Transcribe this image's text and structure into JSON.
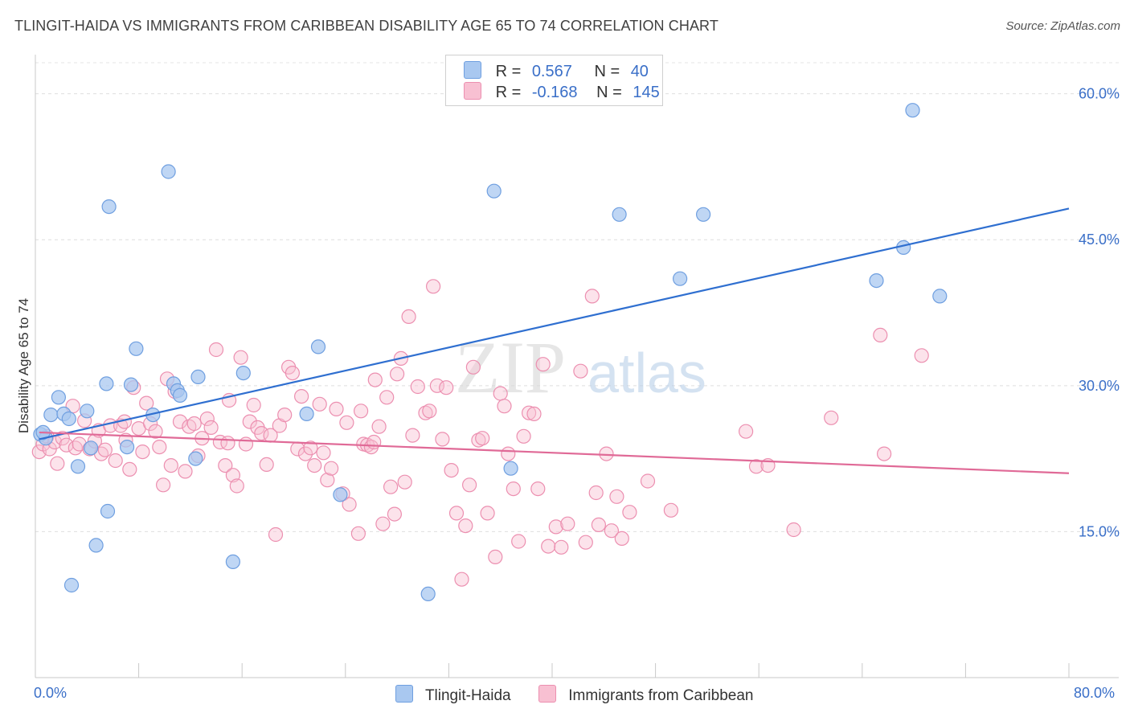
{
  "header": {
    "title": "TLINGIT-HAIDA VS IMMIGRANTS FROM CARIBBEAN DISABILITY AGE 65 TO 74 CORRELATION CHART",
    "source": "Source: ZipAtlas.com"
  },
  "watermark": {
    "zip": "ZIP",
    "atlas": "atlas"
  },
  "legend": {
    "rows": [
      {
        "r_label": "R =",
        "r_value": "0.567",
        "n_label": "N =",
        "n_value": "40",
        "color": "#a9c8f0",
        "edge": "#6f9fe0"
      },
      {
        "r_label": "R =",
        "r_value": "-0.168",
        "n_label": "N =",
        "n_value": "145",
        "color": "#f8c0d2",
        "edge": "#ec8fb0"
      }
    ]
  },
  "chart_data": {
    "type": "scatter",
    "ylabel": "Disability Age 65 to 74",
    "xlim": [
      0,
      80
    ],
    "ylim": [
      0,
      66
    ],
    "x_tick_labels": [
      "0.0%",
      "80.0%"
    ],
    "y_ticks": [
      {
        "value": 15,
        "label": "15.0%"
      },
      {
        "value": 30,
        "label": "30.0%"
      },
      {
        "value": 45,
        "label": "45.0%"
      },
      {
        "value": 60,
        "label": "60.0%"
      }
    ],
    "grid": true,
    "series": [
      {
        "name": "Tlingit-Haida",
        "color": "#a9c8f0",
        "edge": "#6f9fe0",
        "line_color": "#2f6fd0",
        "trend": [
          [
            0.3,
            24.5
          ],
          [
            80,
            48.2
          ]
        ],
        "points": [
          [
            0.4,
            25.0
          ],
          [
            0.8,
            24.6
          ],
          [
            1.2,
            27.0
          ],
          [
            1.8,
            28.8
          ],
          [
            2.2,
            27.1
          ],
          [
            2.6,
            26.6
          ],
          [
            3.3,
            21.7
          ],
          [
            4.0,
            27.4
          ],
          [
            4.3,
            23.6
          ],
          [
            5.6,
            17.1
          ],
          [
            2.8,
            9.5
          ],
          [
            4.7,
            13.6
          ],
          [
            5.7,
            48.4
          ],
          [
            5.5,
            30.2
          ],
          [
            7.4,
            30.1
          ],
          [
            7.8,
            33.8
          ],
          [
            7.1,
            23.7
          ],
          [
            9.1,
            27.0
          ],
          [
            10.3,
            52.0
          ],
          [
            10.7,
            30.2
          ],
          [
            11.0,
            29.5
          ],
          [
            11.2,
            29.0
          ],
          [
            12.4,
            22.5
          ],
          [
            12.6,
            30.9
          ],
          [
            15.3,
            11.9
          ],
          [
            16.1,
            31.3
          ],
          [
            21.0,
            27.1
          ],
          [
            21.9,
            34.0
          ],
          [
            23.6,
            18.8
          ],
          [
            30.4,
            8.6
          ],
          [
            35.5,
            50.0
          ],
          [
            36.8,
            21.5
          ],
          [
            45.2,
            47.6
          ],
          [
            51.7,
            47.6
          ],
          [
            49.9,
            41.0
          ],
          [
            67.9,
            58.3
          ],
          [
            67.2,
            44.2
          ],
          [
            65.1,
            40.8
          ],
          [
            70.0,
            39.2
          ],
          [
            0.6,
            25.2
          ]
        ]
      },
      {
        "name": "Immigrants from Caribbean",
        "color": "#f8c0d2",
        "edge": "#ec8fb0",
        "line_color": "#e06a97",
        "trend": [
          [
            0.3,
            25.2
          ],
          [
            80,
            21.0
          ]
        ],
        "points": [
          [
            0.3,
            23.2
          ],
          [
            0.6,
            24.0
          ],
          [
            0.9,
            24.8
          ],
          [
            1.1,
            23.5
          ],
          [
            1.5,
            24.2
          ],
          [
            1.7,
            22.0
          ],
          [
            2.1,
            24.6
          ],
          [
            2.4,
            23.9
          ],
          [
            2.9,
            27.9
          ],
          [
            3.1,
            23.6
          ],
          [
            3.4,
            24.0
          ],
          [
            3.8,
            26.4
          ],
          [
            4.2,
            23.5
          ],
          [
            4.6,
            24.3
          ],
          [
            4.9,
            25.4
          ],
          [
            5.1,
            23.0
          ],
          [
            5.4,
            23.4
          ],
          [
            5.8,
            25.9
          ],
          [
            6.2,
            22.3
          ],
          [
            6.6,
            25.9
          ],
          [
            7.0,
            24.4
          ],
          [
            7.3,
            21.4
          ],
          [
            7.6,
            29.8
          ],
          [
            8.0,
            25.6
          ],
          [
            8.3,
            23.2
          ],
          [
            8.6,
            28.2
          ],
          [
            8.9,
            26.1
          ],
          [
            9.3,
            25.3
          ],
          [
            9.6,
            23.7
          ],
          [
            9.9,
            19.8
          ],
          [
            10.2,
            30.7
          ],
          [
            10.5,
            21.8
          ],
          [
            10.8,
            29.4
          ],
          [
            11.2,
            26.3
          ],
          [
            11.6,
            21.2
          ],
          [
            11.9,
            25.8
          ],
          [
            12.3,
            26.1
          ],
          [
            12.6,
            22.8
          ],
          [
            12.9,
            24.6
          ],
          [
            13.3,
            26.6
          ],
          [
            13.6,
            25.7
          ],
          [
            14.0,
            33.7
          ],
          [
            14.3,
            24.2
          ],
          [
            14.7,
            21.8
          ],
          [
            15.0,
            28.5
          ],
          [
            15.3,
            20.8
          ],
          [
            15.6,
            19.7
          ],
          [
            15.9,
            32.9
          ],
          [
            16.3,
            24.0
          ],
          [
            16.6,
            26.3
          ],
          [
            16.9,
            28.0
          ],
          [
            17.2,
            25.7
          ],
          [
            17.5,
            25.1
          ],
          [
            17.9,
            21.9
          ],
          [
            18.2,
            24.9
          ],
          [
            18.6,
            14.7
          ],
          [
            18.9,
            25.9
          ],
          [
            19.3,
            27.0
          ],
          [
            19.6,
            31.9
          ],
          [
            19.9,
            31.3
          ],
          [
            20.3,
            23.5
          ],
          [
            20.6,
            28.9
          ],
          [
            20.9,
            23.0
          ],
          [
            21.3,
            23.6
          ],
          [
            21.6,
            21.8
          ],
          [
            22.0,
            28.1
          ],
          [
            22.3,
            23.1
          ],
          [
            22.6,
            20.3
          ],
          [
            22.9,
            21.5
          ],
          [
            23.3,
            27.6
          ],
          [
            23.8,
            18.9
          ],
          [
            24.1,
            26.2
          ],
          [
            24.3,
            17.8
          ],
          [
            25.0,
            14.8
          ],
          [
            25.2,
            27.4
          ],
          [
            25.4,
            24.0
          ],
          [
            25.7,
            23.9
          ],
          [
            26.0,
            23.7
          ],
          [
            26.3,
            30.6
          ],
          [
            26.6,
            25.8
          ],
          [
            26.9,
            15.8
          ],
          [
            27.2,
            28.8
          ],
          [
            27.5,
            19.6
          ],
          [
            27.8,
            16.8
          ],
          [
            28.0,
            31.2
          ],
          [
            28.3,
            32.8
          ],
          [
            28.6,
            20.1
          ],
          [
            28.9,
            37.1
          ],
          [
            29.2,
            24.9
          ],
          [
            29.6,
            29.9
          ],
          [
            30.2,
            27.2
          ],
          [
            30.5,
            27.4
          ],
          [
            30.8,
            40.2
          ],
          [
            31.1,
            30.0
          ],
          [
            31.5,
            24.5
          ],
          [
            31.8,
            29.8
          ],
          [
            32.2,
            21.3
          ],
          [
            32.6,
            16.9
          ],
          [
            33.0,
            10.1
          ],
          [
            33.3,
            15.6
          ],
          [
            33.6,
            19.8
          ],
          [
            33.9,
            31.9
          ],
          [
            34.3,
            24.4
          ],
          [
            34.6,
            24.6
          ],
          [
            35.0,
            16.9
          ],
          [
            35.6,
            12.4
          ],
          [
            36.0,
            29.2
          ],
          [
            36.3,
            27.9
          ],
          [
            36.6,
            23.0
          ],
          [
            37.0,
            19.4
          ],
          [
            37.4,
            14.0
          ],
          [
            37.8,
            24.8
          ],
          [
            38.2,
            27.2
          ],
          [
            38.6,
            27.1
          ],
          [
            38.9,
            19.4
          ],
          [
            39.3,
            32.2
          ],
          [
            39.7,
            13.5
          ],
          [
            40.3,
            15.5
          ],
          [
            40.7,
            13.4
          ],
          [
            41.2,
            15.8
          ],
          [
            42.2,
            31.5
          ],
          [
            42.6,
            13.9
          ],
          [
            43.1,
            39.2
          ],
          [
            43.4,
            19.0
          ],
          [
            43.6,
            15.7
          ],
          [
            44.2,
            23.0
          ],
          [
            44.6,
            15.1
          ],
          [
            45.0,
            18.6
          ],
          [
            45.4,
            14.3
          ],
          [
            46.0,
            17.0
          ],
          [
            47.4,
            20.2
          ],
          [
            49.2,
            17.2
          ],
          [
            55.0,
            25.3
          ],
          [
            55.8,
            21.7
          ],
          [
            56.7,
            21.8
          ],
          [
            58.7,
            15.2
          ],
          [
            61.6,
            26.7
          ],
          [
            65.4,
            35.2
          ],
          [
            65.7,
            23.0
          ],
          [
            68.6,
            33.1
          ],
          [
            26.2,
            24.2
          ],
          [
            14.9,
            24.1
          ],
          [
            6.9,
            26.3
          ]
        ]
      }
    ]
  }
}
